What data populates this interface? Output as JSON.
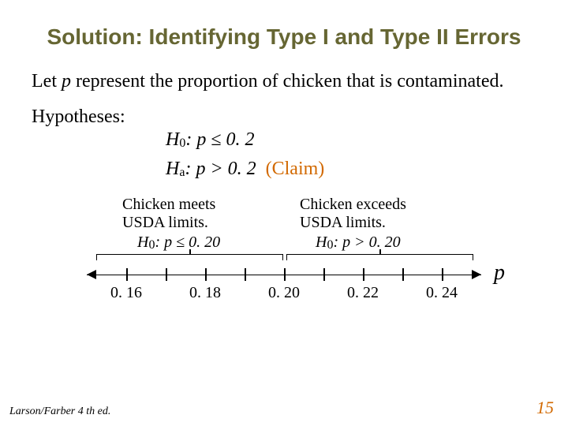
{
  "title": "Solution: Identifying Type I and Type II Errors",
  "intro": {
    "prefix": "Let ",
    "var": "p",
    "rest": " represent the proportion of chicken that is contaminated."
  },
  "hypotheses": {
    "label": "Hypotheses:",
    "h0": {
      "sym": "H",
      "sub": "0",
      "rel": ": p ≤ 0. 2"
    },
    "ha": {
      "sym": "H",
      "sub": "a",
      "rel": ": p > 0. 2",
      "claim": "(Claim)"
    }
  },
  "diagram": {
    "left": {
      "line1": "Chicken meets",
      "line2": "USDA limits.",
      "h": "H",
      "hsub": "0",
      "cond": ": p ≤ 0. 20"
    },
    "right": {
      "line1": "Chicken exceeds",
      "line2": "USDA limits.",
      "h": "H",
      "hsub": "0",
      "cond": ": p > 0. 20"
    },
    "axis_var": "p",
    "ticks": [
      {
        "x_pct": 10,
        "label": "0. 16",
        "major": true
      },
      {
        "x_pct": 20,
        "label": "",
        "major": false
      },
      {
        "x_pct": 30,
        "label": "0. 18",
        "major": true
      },
      {
        "x_pct": 40,
        "label": "",
        "major": false
      },
      {
        "x_pct": 50,
        "label": "0. 20",
        "major": true
      },
      {
        "x_pct": 60,
        "label": "",
        "major": false
      },
      {
        "x_pct": 70,
        "label": "0. 22",
        "major": true
      },
      {
        "x_pct": 80,
        "label": "",
        "major": false
      },
      {
        "x_pct": 90,
        "label": "0. 24",
        "major": true
      }
    ]
  },
  "footer": "Larson/Farber 4 th ed.",
  "page": "15",
  "colors": {
    "title": "#666633",
    "accent": "#d26900",
    "text": "#000000",
    "background": "#ffffff"
  }
}
